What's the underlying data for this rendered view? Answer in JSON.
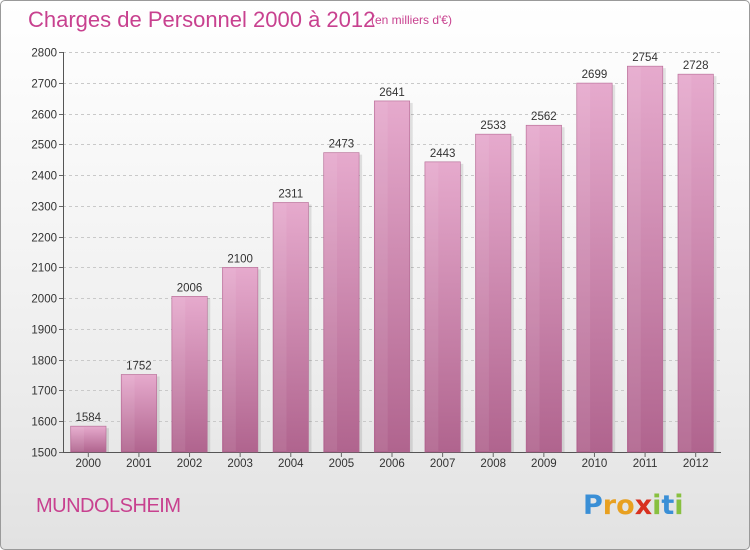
{
  "title": "Charges de Personnel 2000 à 2012",
  "subtitle": "(en milliers d'€)",
  "commune": "MUNDOLSHEIM",
  "logo": {
    "letters": [
      "P",
      "r",
      "o",
      "x",
      "i",
      "t",
      "i"
    ],
    "colors": [
      "#3a8fd6",
      "#e8a020",
      "#e8a020",
      "#d8301f",
      "#88c040",
      "#3a8fd6",
      "#88c040"
    ]
  },
  "colors": {
    "bar_top": "#e6aacd",
    "bar_bottom": "#b0648e",
    "text": "#333333",
    "accent": "#c8418f"
  },
  "chart_data": {
    "type": "bar",
    "categories": [
      "2000",
      "2001",
      "2002",
      "2003",
      "2004",
      "2005",
      "2006",
      "2007",
      "2008",
      "2009",
      "2010",
      "2011",
      "2012"
    ],
    "values": [
      1584,
      1752,
      2006,
      2100,
      2311,
      2473,
      2641,
      2443,
      2533,
      2562,
      2699,
      2754,
      2728
    ],
    "ylim": [
      1500,
      2800
    ],
    "yticks": [
      1500,
      1600,
      1700,
      1800,
      1900,
      2000,
      2100,
      2200,
      2300,
      2400,
      2500,
      2600,
      2700,
      2800
    ],
    "grid": true
  }
}
